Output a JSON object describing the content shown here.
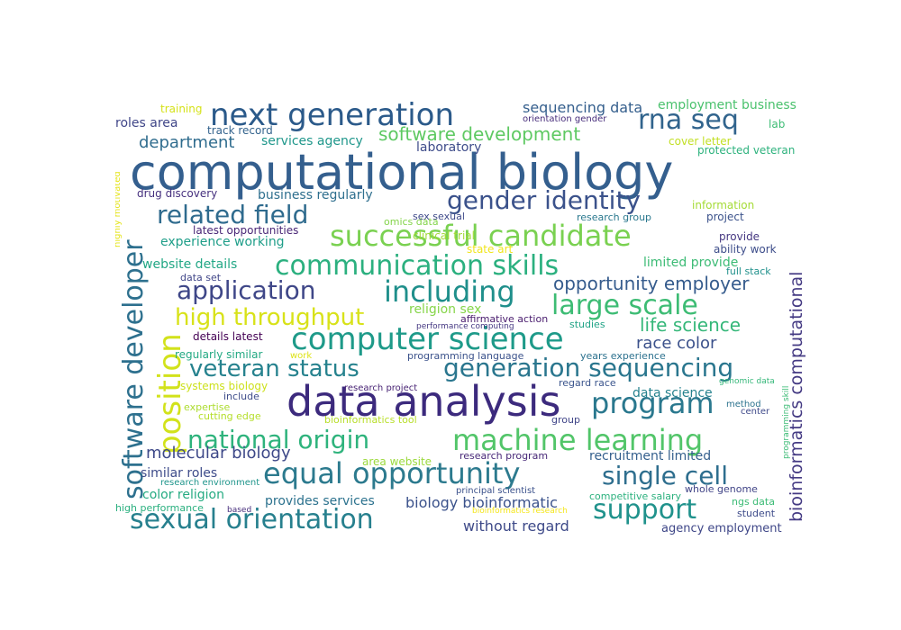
{
  "word_cloud": {
    "background": "#ffffff",
    "words": [
      {
        "text": "computational biology",
        "color": "#345f8e"
      },
      {
        "text": "data analysis",
        "color": "#3c2a7d"
      },
      {
        "text": "next generation",
        "color": "#2b5a8a"
      },
      {
        "text": "successful candidate",
        "color": "#7ad151"
      },
      {
        "text": "communication skills",
        "color": "#2bb07f"
      },
      {
        "text": "including",
        "color": "#1f8f8b"
      },
      {
        "text": "computer science",
        "color": "#1e9a89"
      },
      {
        "text": "machine learning",
        "color": "#52c569"
      },
      {
        "text": "equal opportunity",
        "color": "#2c7a8e"
      },
      {
        "text": "sexual orientation",
        "color": "#27808e"
      },
      {
        "text": "program",
        "color": "#2a788e"
      },
      {
        "text": "software developer",
        "color": "#2d708e"
      },
      {
        "text": "position",
        "color": "#d2e21b"
      },
      {
        "text": "rna seq",
        "color": "#31648d"
      },
      {
        "text": "gender identity",
        "color": "#3b528b"
      },
      {
        "text": "related field",
        "color": "#2f6b8e"
      },
      {
        "text": "application",
        "color": "#3f4788"
      },
      {
        "text": "large scale",
        "color": "#3dbc74"
      },
      {
        "text": "veteran status",
        "color": "#26828e"
      },
      {
        "text": "generation sequencing",
        "color": "#2a768e"
      },
      {
        "text": "national origin",
        "color": "#2eb37c"
      },
      {
        "text": "single cell",
        "color": "#2e6e8e"
      },
      {
        "text": "support",
        "color": "#20928c"
      },
      {
        "text": "high throughput",
        "color": "#d8e219"
      },
      {
        "text": "software development",
        "color": "#5ec962"
      },
      {
        "text": "opportunity employer",
        "color": "#365c8d"
      },
      {
        "text": "life science",
        "color": "#35b779"
      },
      {
        "text": "bioinformatics computational",
        "color": "#443a83"
      },
      {
        "text": "molecular biology",
        "color": "#3e4989"
      },
      {
        "text": "department",
        "color": "#2f6c8e"
      },
      {
        "text": "race color",
        "color": "#3b518b"
      },
      {
        "text": "sequencing data",
        "color": "#355f8d"
      },
      {
        "text": "employment business",
        "color": "#4ac16d"
      },
      {
        "text": "experience working",
        "color": "#1f9e89"
      },
      {
        "text": "similar roles",
        "color": "#3e4c8a"
      },
      {
        "text": "color religion",
        "color": "#25ab82"
      },
      {
        "text": "website details",
        "color": "#22a785"
      },
      {
        "text": "data science",
        "color": "#26828e"
      },
      {
        "text": "limited provide",
        "color": "#3cbb75"
      },
      {
        "text": "recruitment limited",
        "color": "#345f8d"
      },
      {
        "text": "without regard",
        "color": "#3e4a89"
      },
      {
        "text": "provides services",
        "color": "#2c728e"
      },
      {
        "text": "biology bioinformatic",
        "color": "#3b528b"
      },
      {
        "text": "laboratory",
        "color": "#3e4c8a"
      },
      {
        "text": "services agency",
        "color": "#1f978b"
      },
      {
        "text": "business regularly",
        "color": "#2e6f8e"
      },
      {
        "text": "roles area",
        "color": "#404688"
      },
      {
        "text": "training",
        "color": "#d5e21a"
      },
      {
        "text": "track record",
        "color": "#33638d"
      },
      {
        "text": "orientation gender",
        "color": "#472d7b"
      },
      {
        "text": "lab",
        "color": "#3dbc74"
      },
      {
        "text": "cover letter",
        "color": "#c2df23"
      },
      {
        "text": "protected veteran",
        "color": "#2db27d"
      },
      {
        "text": "drug discovery",
        "color": "#46307e"
      },
      {
        "text": "highly motivated",
        "color": "#e5e419"
      },
      {
        "text": "information",
        "color": "#a5db36"
      },
      {
        "text": "project",
        "color": "#3b528b"
      },
      {
        "text": "omics data",
        "color": "#84d44b"
      },
      {
        "text": "research group",
        "color": "#2a788e"
      },
      {
        "text": "sex sexual",
        "color": "#3e4989"
      },
      {
        "text": "latest opportunities",
        "color": "#482576"
      },
      {
        "text": "provide",
        "color": "#453781"
      },
      {
        "text": "clinical trial",
        "color": "#a2da37"
      },
      {
        "text": "state art",
        "color": "#f1e51d"
      },
      {
        "text": "ability work",
        "color": "#3d4d8a"
      },
      {
        "text": "full stack",
        "color": "#21918c"
      },
      {
        "text": "data set",
        "color": "#404688"
      },
      {
        "text": "religion sex",
        "color": "#86d549"
      },
      {
        "text": "affirmative action",
        "color": "#481b6d"
      },
      {
        "text": "performance computing",
        "color": "#453882"
      },
      {
        "text": "studies",
        "color": "#20a386"
      },
      {
        "text": "details latest",
        "color": "#440154"
      },
      {
        "text": "regularly similar",
        "color": "#23a983"
      },
      {
        "text": "work",
        "color": "#dde318"
      },
      {
        "text": "programming language",
        "color": "#3b528b"
      },
      {
        "text": "years experience",
        "color": "#2c718e"
      },
      {
        "text": "systems biology",
        "color": "#cde11d"
      },
      {
        "text": "research project",
        "color": "#482374"
      },
      {
        "text": "regard race",
        "color": "#3a548c"
      },
      {
        "text": "genomic data",
        "color": "#35b779"
      },
      {
        "text": "method",
        "color": "#2c738e"
      },
      {
        "text": "center",
        "color": "#3e4989"
      },
      {
        "text": "programming skill",
        "color": "#3bbb75"
      },
      {
        "text": "include",
        "color": "#3e4c8a"
      },
      {
        "text": "expertise",
        "color": "#addc30"
      },
      {
        "text": "cutting edge",
        "color": "#b5de2b"
      },
      {
        "text": "bioinformatics tool",
        "color": "#b8de29"
      },
      {
        "text": "group",
        "color": "#404588"
      },
      {
        "text": "area website",
        "color": "#9bd93c"
      },
      {
        "text": "research program",
        "color": "#482878"
      },
      {
        "text": "research environment",
        "color": "#1f958b"
      },
      {
        "text": "principal scientist",
        "color": "#3b518b"
      },
      {
        "text": "competitive salary",
        "color": "#2cb17e"
      },
      {
        "text": "whole genome",
        "color": "#414487"
      },
      {
        "text": "ngs data",
        "color": "#3bbb75"
      },
      {
        "text": "high performance",
        "color": "#2ab07f"
      },
      {
        "text": "based",
        "color": "#472f7d"
      },
      {
        "text": "bioinformatics research",
        "color": "#f4e61e"
      },
      {
        "text": "student",
        "color": "#3e4c8a"
      },
      {
        "text": "agency employment",
        "color": "#3f4788"
      }
    ]
  }
}
